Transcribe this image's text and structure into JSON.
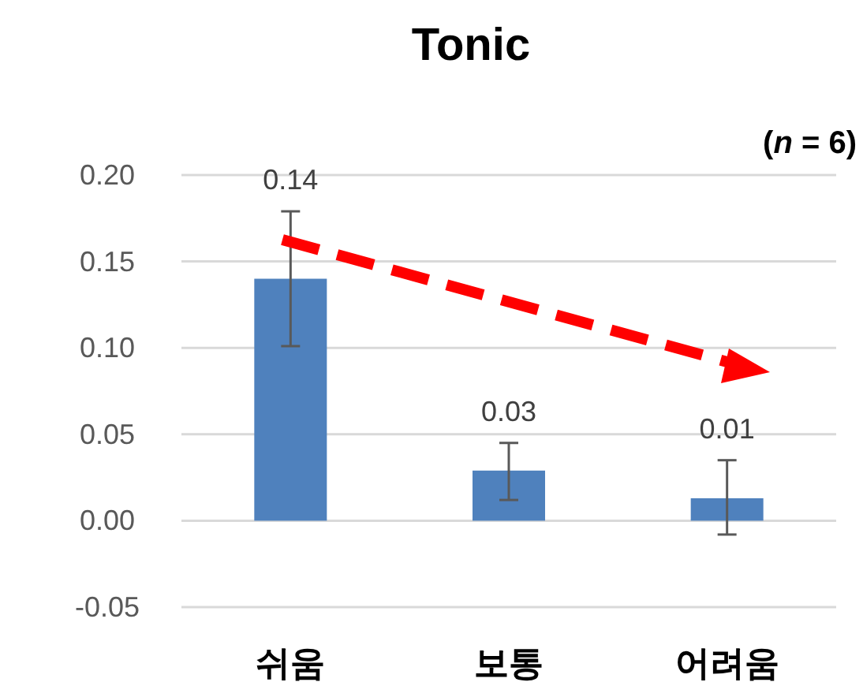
{
  "chart_data": {
    "type": "bar",
    "title": "Tonic",
    "annotations": [
      "(*n* = 6)"
    ],
    "categories": [
      "쉬움",
      "보통",
      "어려움"
    ],
    "values": [
      0.14,
      0.029,
      0.013
    ],
    "value_labels": [
      "0.14",
      "0.03",
      "0.01"
    ],
    "errors": [
      [
        0.101,
        0.179
      ],
      [
        0.012,
        0.045
      ],
      [
        -0.008,
        0.035
      ]
    ],
    "color": "#4f81bd",
    "ylim": [
      -0.05,
      0.2
    ],
    "yticks": [
      {
        "value": -0.05,
        "label": "-0.05"
      },
      {
        "value": 0,
        "label": "0.00"
      },
      {
        "value": 0.05,
        "label": "0.05"
      },
      {
        "value": 0.1,
        "label": "0.10"
      },
      {
        "value": 0.15,
        "label": "0.15"
      },
      {
        "value": 0.2,
        "label": "0.20"
      }
    ],
    "grid": "y"
  }
}
